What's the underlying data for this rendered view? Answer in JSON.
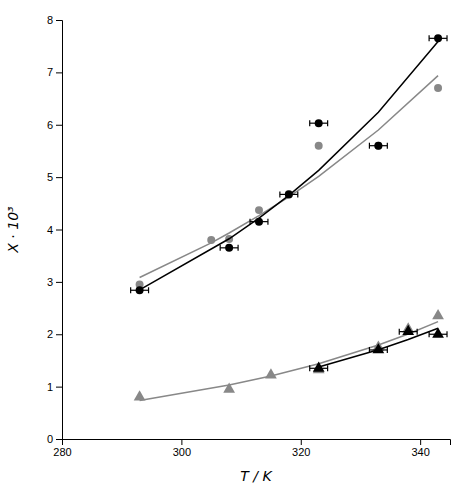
{
  "chart_data": {
    "type": "scatter",
    "xlabel": "T / K",
    "ylabel": "X ⋅ 10³",
    "xlim": [
      280,
      345
    ],
    "ylim": [
      0,
      8
    ],
    "xticks": [
      280,
      300,
      320,
      340
    ],
    "yticks": [
      0,
      1,
      2,
      3,
      4,
      5,
      6,
      7,
      8
    ],
    "grid": false,
    "series": [
      {
        "type": "line",
        "color": "#888888",
        "line_style": "solid",
        "x": [
          293,
          305,
          308,
          313,
          318,
          323,
          333,
          343
        ],
        "values": [
          3.084,
          3.746,
          3.933,
          4.265,
          4.625,
          5.016,
          5.899,
          6.937
        ]
      },
      {
        "type": "scatter",
        "color": "#888888",
        "marker": "circle",
        "x": [
          293,
          305,
          308,
          313,
          318,
          323,
          333,
          343
        ],
        "values": [
          2.95,
          3.8,
          3.82,
          4.37,
          4.68,
          5.6,
          5.6,
          6.7
        ]
      },
      {
        "type": "line",
        "color": "#000000",
        "line_style": "solid",
        "x": [
          293,
          308,
          313,
          318,
          323,
          333,
          343
        ],
        "values": [
          2.849,
          3.823,
          4.216,
          4.651,
          5.129,
          6.24,
          7.591
        ]
      },
      {
        "type": "scatter",
        "color": "#000000",
        "marker": "circle",
        "x": [
          293,
          308,
          313,
          318,
          323,
          333,
          343
        ],
        "values": [
          2.84,
          3.65,
          4.15,
          4.67,
          6.03,
          5.6,
          7.65
        ],
        "x_errors": [
          1.5,
          1.5,
          1.5,
          1.5,
          1.5,
          1.5,
          1.5
        ]
      },
      {
        "type": "line",
        "color": "#888888",
        "line_style": "solid",
        "x": [
          293,
          308,
          315,
          323,
          333,
          338,
          343
        ],
        "values": [
          0.737,
          1.029,
          1.202,
          1.437,
          1.795,
          2.006,
          2.242
        ]
      },
      {
        "type": "scatter",
        "color": "#888888",
        "marker": "triangle",
        "x": [
          293,
          308,
          315,
          323,
          333,
          338,
          343
        ],
        "values": [
          0.8,
          0.95,
          1.22,
          1.32,
          1.75,
          2.1,
          2.35
        ]
      },
      {
        "type": "line",
        "color": "#000000",
        "line_style": "solid",
        "x": [
          323,
          333,
          338,
          343
        ],
        "values": [
          1.374,
          1.705,
          1.899,
          2.115
        ]
      },
      {
        "type": "scatter",
        "color": "#000000",
        "marker": "triangle",
        "x": [
          323,
          333,
          338,
          343
        ],
        "values": [
          1.35,
          1.7,
          2.05,
          2.0
        ],
        "x_errors": [
          1.5,
          1.5,
          1.5,
          1.5
        ]
      }
    ]
  }
}
